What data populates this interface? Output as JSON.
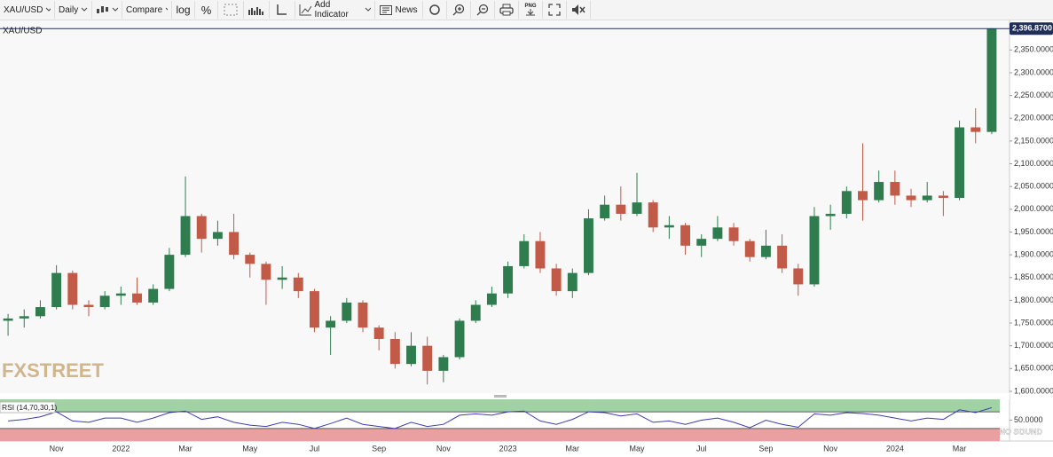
{
  "toolbar": {
    "symbol": "XAU/USD",
    "interval": "Daily",
    "compare": "Compare",
    "log": "log",
    "percent": "%",
    "add_indicator": "Add Indicator",
    "news": "News",
    "png": "PNG"
  },
  "watermarks": {
    "brand": "FXSTREET",
    "corner": "SINO SOUND"
  },
  "chart_data": [
    {
      "type": "candlestick",
      "title": "XAU/USD",
      "categories": [
        null,
        null,
        null,
        "Nov",
        null,
        null,
        null,
        "2022",
        null,
        null,
        null,
        "Mar",
        null,
        null,
        null,
        "May",
        null,
        null,
        null,
        "Jul",
        null,
        null,
        null,
        "Sep",
        null,
        null,
        null,
        "Nov",
        null,
        null,
        null,
        "2023",
        null,
        null,
        null,
        "Mar",
        null,
        null,
        null,
        "May",
        null,
        null,
        null,
        "Jul",
        null,
        null,
        null,
        "Sep",
        null,
        null,
        null,
        "Nov",
        null,
        null,
        null,
        "2024",
        null,
        null,
        null,
        "Mar",
        null,
        null
      ],
      "open": [
        1755,
        1760,
        1765,
        1785,
        1860,
        1790,
        1785,
        1810,
        1815,
        1795,
        1825,
        1900,
        1985,
        1935,
        1950,
        1900,
        1880,
        1845,
        1850,
        1820,
        1740,
        1755,
        1795,
        1740,
        1715,
        1660,
        1700,
        1645,
        1675,
        1755,
        1790,
        1815,
        1875,
        1930,
        1870,
        1820,
        1860,
        1980,
        2010,
        1990,
        2015,
        1960,
        1965,
        1920,
        1935,
        1960,
        1930,
        1895,
        1920,
        1870,
        1835,
        1985,
        1990,
        2040,
        2020,
        2060,
        2030,
        2020,
        2030,
        2025,
        2180,
        2170
      ],
      "high": [
        1770,
        1780,
        1800,
        1877,
        1865,
        1800,
        1820,
        1830,
        1850,
        1835,
        1915,
        2072,
        1990,
        1975,
        1990,
        1905,
        1885,
        1875,
        1860,
        1825,
        1765,
        1805,
        1800,
        1745,
        1730,
        1730,
        1720,
        1680,
        1760,
        1800,
        1830,
        1885,
        1945,
        1950,
        1880,
        1870,
        2000,
        2030,
        2050,
        2080,
        2020,
        1985,
        1970,
        1945,
        1985,
        1970,
        1935,
        1955,
        1945,
        1880,
        2005,
        2010,
        2050,
        2145,
        2085,
        2085,
        2045,
        2060,
        2040,
        2195,
        2222,
        2398
      ],
      "low": [
        1722,
        1740,
        1760,
        1780,
        1780,
        1765,
        1780,
        1790,
        1790,
        1790,
        1820,
        1895,
        1905,
        1920,
        1890,
        1850,
        1790,
        1825,
        1805,
        1730,
        1680,
        1750,
        1730,
        1690,
        1650,
        1655,
        1615,
        1620,
        1670,
        1750,
        1785,
        1805,
        1870,
        1860,
        1810,
        1805,
        1855,
        1975,
        1975,
        1985,
        1950,
        1935,
        1900,
        1895,
        1930,
        1920,
        1885,
        1890,
        1860,
        1810,
        1830,
        1955,
        1980,
        1975,
        2015,
        2010,
        2005,
        2015,
        1985,
        2020,
        2145,
        2165
      ],
      "close": [
        1760,
        1765,
        1785,
        1860,
        1790,
        1785,
        1810,
        1815,
        1795,
        1825,
        1900,
        1985,
        1935,
        1950,
        1900,
        1880,
        1845,
        1850,
        1820,
        1740,
        1755,
        1795,
        1740,
        1715,
        1660,
        1700,
        1645,
        1675,
        1755,
        1790,
        1815,
        1875,
        1930,
        1870,
        1820,
        1860,
        1980,
        2010,
        1990,
        2015,
        1960,
        1965,
        1920,
        1935,
        1960,
        1930,
        1895,
        1920,
        1870,
        1835,
        1985,
        1990,
        2040,
        2020,
        2060,
        2030,
        2020,
        2030,
        2025,
        2180,
        2170,
        2396.87
      ],
      "up_color": "#2f7d4e",
      "down_color": "#c25a48",
      "ylim": [
        1596,
        2415
      ],
      "yticks": [
        {
          "value": 1600,
          "label": "1,600.0000"
        },
        {
          "value": 1650,
          "label": "1,650.0000"
        },
        {
          "value": 1700,
          "label": "1,700.0000"
        },
        {
          "value": 1750,
          "label": "1,750.0000"
        },
        {
          "value": 1800,
          "label": "1,800.0000"
        },
        {
          "value": 1850,
          "label": "1,850.0000"
        },
        {
          "value": 1900,
          "label": "1,900.0000"
        },
        {
          "value": 1950,
          "label": "1,950.0000"
        },
        {
          "value": 2000,
          "label": "2,000.0000"
        },
        {
          "value": 2050,
          "label": "2,050.0000"
        },
        {
          "value": 2100,
          "label": "2,100.0000"
        },
        {
          "value": 2150,
          "label": "2,150.0000"
        },
        {
          "value": 2200,
          "label": "2,200.0000"
        },
        {
          "value": 2250,
          "label": "2,250.0000"
        },
        {
          "value": 2300,
          "label": "2,300.0000"
        },
        {
          "value": 2350,
          "label": "2,350.0000"
        }
      ],
      "last_price": {
        "value": 2396.87,
        "label": "2,396.8700"
      },
      "grid": false
    },
    {
      "type": "line",
      "title": "RSI (14,70,30,1)",
      "values": [
        48,
        52,
        58,
        70,
        48,
        45,
        55,
        55,
        45,
        55,
        68,
        72,
        52,
        58,
        45,
        38,
        35,
        45,
        40,
        30,
        42,
        55,
        40,
        35,
        30,
        45,
        35,
        40,
        62,
        65,
        62,
        70,
        72,
        48,
        40,
        52,
        70,
        68,
        60,
        65,
        45,
        48,
        40,
        50,
        55,
        45,
        32,
        50,
        40,
        33,
        65,
        62,
        68,
        66,
        62,
        55,
        48,
        55,
        52,
        75,
        68,
        80
      ],
      "color": "#3b3fb0",
      "ylim": [
        0,
        100
      ],
      "yticks": [
        {
          "value": 50,
          "label": "50.0000"
        }
      ],
      "overbought": 70,
      "oversold": 30,
      "overbought_color": "#9fd3a4",
      "oversold_color": "#e8a0a0"
    }
  ]
}
